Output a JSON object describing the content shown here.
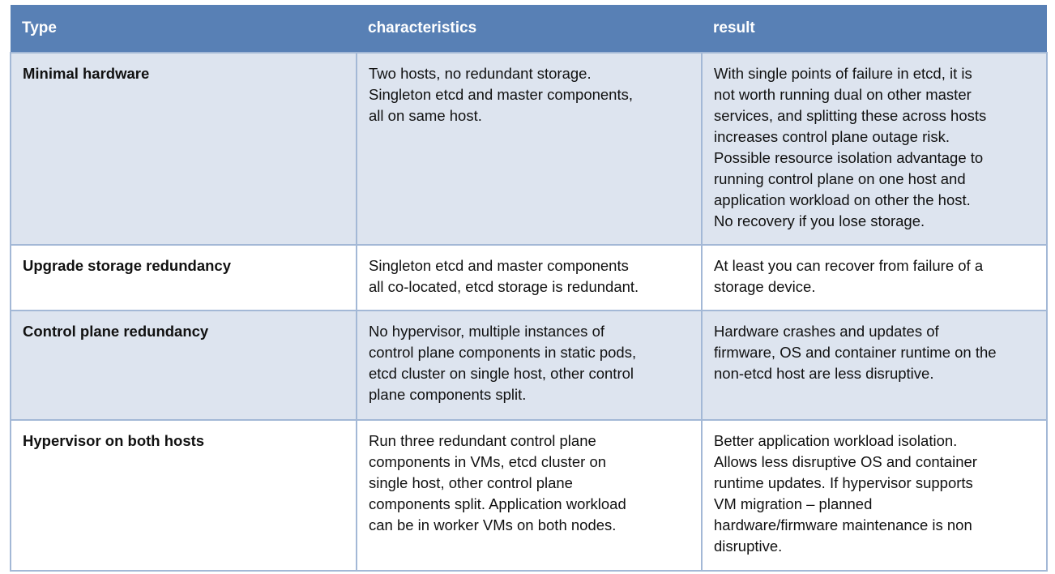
{
  "headers": [
    "Type",
    "characteristics",
    "result"
  ],
  "colors": {
    "header_bg": "#5880b5",
    "row_shade": "#dde4ef",
    "border": "#a3b8d6"
  },
  "rows": [
    {
      "type": "Minimal hardware",
      "characteristics": "Two hosts, no redundant storage.\nSingleton etcd and master components,\nall on same host.",
      "result": "With single points of failure in etcd, it is\nnot worth running dual on other master\nservices, and splitting these across hosts\nincreases control plane outage risk.\nPossible resource isolation advantage to\nrunning control plane on one host and\napplication workload on other the host.\nNo recovery if you lose storage."
    },
    {
      "type": "Upgrade storage redundancy",
      "characteristics": "Singleton etcd and master components\nall co-located, etcd storage is redundant.",
      "result": "At least you can recover from failure of a\nstorage device."
    },
    {
      "type": "Control plane redundancy",
      "characteristics": "No hypervisor, multiple instances of\ncontrol plane components in static pods,\netcd cluster on single host, other control\nplane components split.",
      "result": "Hardware crashes and updates of\nfirmware, OS and container runtime on the\nnon-etcd host are less disruptive."
    },
    {
      "type": "Hypervisor on both hosts",
      "characteristics": "Run three redundant control plane\ncomponents in VMs, etcd cluster on\nsingle host, other control plane\ncomponents split. Application workload\ncan be in worker VMs on both nodes.",
      "result": "Better application workload isolation.\nAllows less disruptive OS and container\nruntime updates. If hypervisor supports\nVM migration – planned\nhardware/firmware maintenance is non\ndisruptive."
    }
  ]
}
